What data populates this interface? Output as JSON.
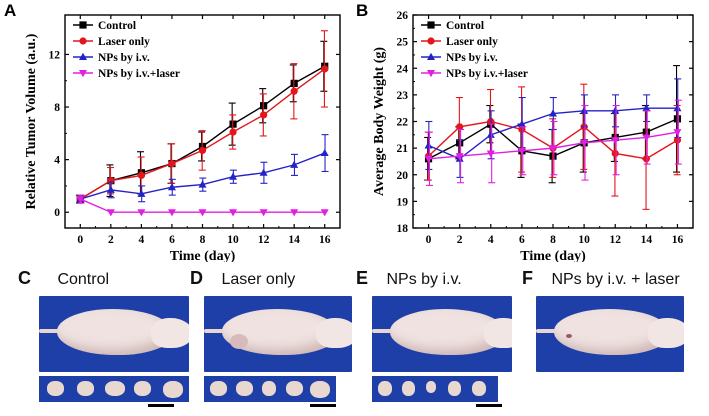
{
  "chart_data": [
    {
      "panel": "A",
      "type": "line",
      "xlabel": "Time (day)",
      "ylabel": "Relative Tumor Volume (a.u.)",
      "x": [
        0,
        2,
        4,
        6,
        8,
        10,
        12,
        14,
        16
      ],
      "xticks": [
        "0",
        "2",
        "4",
        "6",
        "8",
        "10",
        "12",
        "14",
        "16"
      ],
      "yticks": [
        "0",
        "4",
        "8",
        "12"
      ],
      "xlim": [
        -1,
        17
      ],
      "ylim": [
        -1.2,
        15
      ],
      "legend_position": "top-left",
      "series": [
        {
          "name": "Control",
          "color": "#000000",
          "marker": "square",
          "values": [
            1.0,
            2.4,
            3.0,
            3.7,
            5.0,
            6.7,
            8.1,
            9.8,
            11.1
          ],
          "errors": [
            0.3,
            1.2,
            1.6,
            1.5,
            1.1,
            1.6,
            1.3,
            1.4,
            1.9
          ]
        },
        {
          "name": "Laser only",
          "color": "#e4161b",
          "marker": "circle",
          "values": [
            1.0,
            2.4,
            2.8,
            3.7,
            4.7,
            6.1,
            7.4,
            9.2,
            10.9
          ],
          "errors": [
            0.3,
            1.0,
            1.4,
            1.5,
            1.5,
            1.3,
            1.6,
            2.1,
            2.9
          ]
        },
        {
          "name": "NPs by i.v.",
          "color": "#2323c8",
          "marker": "triangle",
          "values": [
            1.0,
            1.7,
            1.4,
            1.9,
            2.1,
            2.7,
            3.0,
            3.6,
            4.5
          ],
          "errors": [
            0.3,
            0.6,
            0.6,
            0.6,
            0.5,
            0.5,
            0.8,
            0.8,
            1.4
          ]
        },
        {
          "name": "NPs by i.v.+laser",
          "color": "#e020e0",
          "marker": "triangle-down",
          "values": [
            1.0,
            0.0,
            0.0,
            0.0,
            0.0,
            0.0,
            0.0,
            0.0,
            0.0
          ],
          "errors": [
            0.3,
            0,
            0,
            0,
            0,
            0,
            0,
            0,
            0
          ]
        }
      ]
    },
    {
      "panel": "B",
      "type": "line",
      "xlabel": "Time (day)",
      "ylabel": "Average Body Weight (g)",
      "x": [
        0,
        2,
        4,
        6,
        8,
        10,
        12,
        14,
        16
      ],
      "xticks": [
        "0",
        "2",
        "4",
        "6",
        "8",
        "10",
        "12",
        "14",
        "16"
      ],
      "yticks": [
        "18",
        "19",
        "20",
        "21",
        "22",
        "23",
        "24",
        "25",
        "26"
      ],
      "xlim": [
        -1,
        17
      ],
      "ylim": [
        18,
        26
      ],
      "legend_position": "top-left",
      "series": [
        {
          "name": "Control",
          "color": "#000000",
          "marker": "square",
          "values": [
            20.6,
            21.2,
            21.9,
            20.9,
            20.7,
            21.2,
            21.4,
            21.6,
            22.1
          ],
          "errors": [
            0.8,
            0.6,
            0.7,
            1.0,
            1.0,
            1.1,
            0.9,
            1.0,
            2.0
          ]
        },
        {
          "name": "Laser only",
          "color": "#e4161b",
          "marker": "circle",
          "values": [
            20.7,
            21.8,
            22.0,
            21.7,
            21.0,
            21.8,
            20.8,
            20.6,
            21.3
          ],
          "errors": [
            0.9,
            1.1,
            1.2,
            1.6,
            1.1,
            1.6,
            1.6,
            1.9,
            1.3
          ]
        },
        {
          "name": "NPs by i.v.",
          "color": "#2323c8",
          "marker": "triangle",
          "values": [
            21.1,
            20.6,
            21.5,
            21.9,
            22.3,
            22.4,
            22.4,
            22.5,
            22.5
          ],
          "errors": [
            0.9,
            0.7,
            0.9,
            1.0,
            0.6,
            0.6,
            0.6,
            0.5,
            1.1
          ]
        },
        {
          "name": "NPs by i.v.+laser",
          "color": "#e020e0",
          "marker": "triangle-down",
          "values": [
            20.6,
            20.7,
            20.8,
            20.9,
            21.0,
            21.2,
            21.3,
            21.4,
            21.6
          ],
          "errors": [
            1.0,
            1.0,
            1.1,
            0.9,
            1.0,
            1.4,
            1.3,
            1.0,
            1.2
          ]
        }
      ]
    }
  ],
  "photo_panels": [
    {
      "letter": "C",
      "title": "Control",
      "tumor_count": 5
    },
    {
      "letter": "D",
      "title": "Laser only",
      "tumor_count": 5
    },
    {
      "letter": "E",
      "title": "NPs by i.v.",
      "tumor_count": 5
    },
    {
      "letter": "F",
      "title": "NPs by i.v. + laser",
      "tumor_count": 0
    }
  ],
  "panel_letters": {
    "a": "A",
    "b": "B"
  },
  "colors": {
    "photo_background": "#1f3fa8",
    "mouse_skin": "#efe2e0",
    "tumor": "#e9d8d0"
  }
}
